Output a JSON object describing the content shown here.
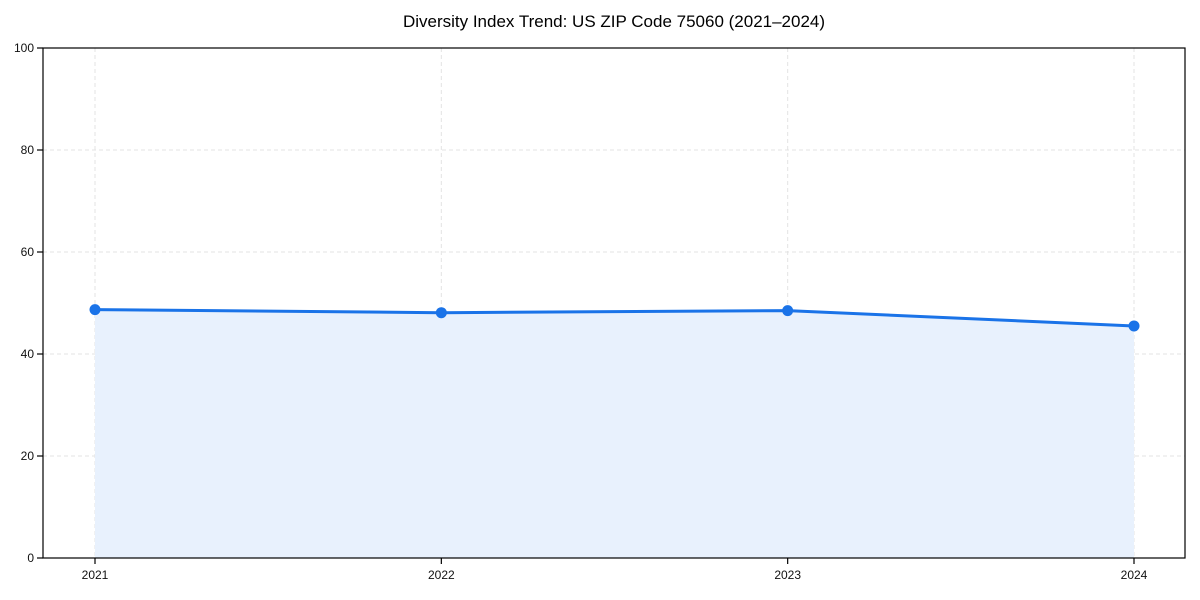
{
  "chart_data": {
    "type": "area",
    "title": "Diversity Index Trend: US ZIP Code 75060 (2021–2024)",
    "categories": [
      "2021",
      "2022",
      "2023",
      "2024"
    ],
    "series": [
      {
        "name": "Diversity Index",
        "values": [
          48.7,
          48.1,
          48.5,
          45.5
        ]
      }
    ],
    "xlabel": "",
    "ylabel": "",
    "ylim": [
      0,
      100
    ],
    "yticks": [
      0,
      20,
      40,
      60,
      80,
      100
    ],
    "grid": true,
    "grid_style": "dashed",
    "legend": "none",
    "colors": {
      "line": "#1a73e8",
      "marker": "#1a73e8",
      "fill": "#e8f1fd",
      "grid": "#e3e3e3",
      "spine": "#000000",
      "tick": "#000000",
      "tick_label": "#111111",
      "background": "#ffffff"
    }
  }
}
